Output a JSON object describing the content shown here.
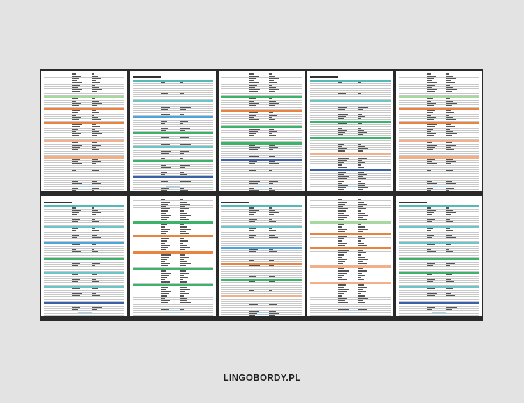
{
  "brand": "LINGOBORDY.PL",
  "pages": [
    {
      "title": false,
      "bands": [
        "lightgreen",
        "orange",
        "orange",
        "peach",
        "peach"
      ],
      "rows": [
        10,
        4,
        5,
        7,
        6,
        8,
        10
      ]
    },
    {
      "title": true,
      "bands": [
        "teal",
        "blue",
        "green",
        "teal",
        "green",
        "navy"
      ],
      "rows": [
        8,
        6,
        6,
        5,
        5,
        6,
        6,
        4
      ]
    },
    {
      "title": false,
      "bands": [
        "green",
        "orange",
        "green",
        "green",
        "navy"
      ],
      "rows": [
        10,
        5,
        6,
        6,
        6,
        6,
        8
      ]
    },
    {
      "title": true,
      "bands": [
        "teal",
        "green",
        "green",
        "peach",
        "navy"
      ],
      "rows": [
        8,
        8,
        6,
        6,
        6,
        6,
        6
      ]
    },
    {
      "title": false,
      "bands": [
        "lightgreen",
        "orange",
        "orange",
        "peach",
        "peach"
      ],
      "rows": [
        10,
        4,
        5,
        7,
        6,
        8,
        10
      ]
    },
    {
      "title": true,
      "bands": [
        "teal",
        "blue",
        "green",
        "teal",
        "teal",
        "navy"
      ],
      "rows": [
        8,
        6,
        6,
        5,
        5,
        6,
        6,
        4
      ]
    },
    {
      "title": false,
      "bands": [
        "green",
        "orange",
        "orange",
        "green",
        "green"
      ],
      "rows": [
        10,
        5,
        6,
        6,
        6,
        6,
        8
      ]
    },
    {
      "title": true,
      "bands": [
        "teal",
        "blue",
        "orange",
        "green",
        "peach"
      ],
      "rows": [
        8,
        8,
        6,
        6,
        6,
        6,
        6
      ]
    },
    {
      "title": false,
      "bands": [
        "lightgreen",
        "orange",
        "orange",
        "peach",
        "peach"
      ],
      "rows": [
        10,
        4,
        5,
        7,
        6,
        8,
        10
      ]
    },
    {
      "title": true,
      "bands": [
        "teal",
        "teal",
        "green",
        "green",
        "teal",
        "navy"
      ],
      "rows": [
        8,
        6,
        6,
        5,
        5,
        6,
        6,
        4
      ]
    }
  ]
}
